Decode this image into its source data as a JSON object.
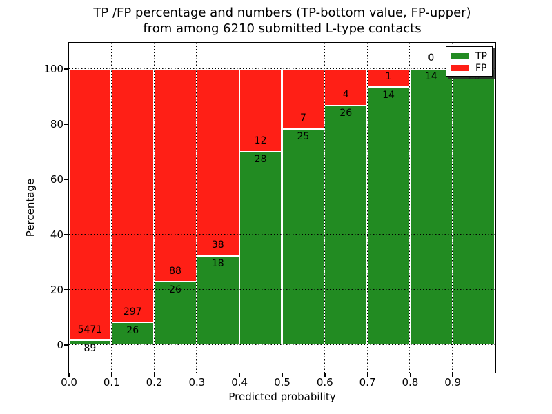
{
  "figure": {
    "title_lines": [
      "TP /FP percentage and numbers (TP-bottom value, FP-upper)",
      "from among 6210 submitted L-type contacts"
    ]
  },
  "chart_data": {
    "type": "bar",
    "stacked": true,
    "title": "TP /FP percentage and numbers (TP-bottom value, FP-upper) from among 6210 submitted L-type contacts",
    "xlabel": "Predicted probability",
    "ylabel": "Percentage",
    "total_submitted": 6210,
    "x_bin_starts": [
      0.0,
      0.1,
      0.2,
      0.3,
      0.4,
      0.5,
      0.6,
      0.7,
      0.8,
      0.9
    ],
    "bin_width": 0.1,
    "x_tick_labels": [
      "0.0",
      "0.1",
      "0.2",
      "0.3",
      "0.4",
      "0.5",
      "0.6",
      "0.7",
      "0.8",
      "0.9"
    ],
    "y_ticks": [
      0,
      20,
      40,
      60,
      80,
      100
    ],
    "y_tick_labels": [
      "0",
      "20",
      "40",
      "60",
      "80",
      "100"
    ],
    "xlim": [
      0.0,
      1.0
    ],
    "ylim": [
      -10,
      109.5
    ],
    "grid": "dotted",
    "legend": {
      "position": "upper right",
      "entries": [
        "TP",
        "FP"
      ]
    },
    "series": [
      {
        "name": "TP",
        "color": "#228b22",
        "counts": [
          89,
          26,
          26,
          18,
          28,
          25,
          26,
          14,
          14,
          26
        ],
        "percent": [
          1.6,
          8.05,
          22.81,
          32.14,
          70.0,
          78.13,
          86.67,
          93.33,
          100.0,
          100.0
        ]
      },
      {
        "name": "FP",
        "color": "#ff1f16",
        "counts": [
          5471,
          297,
          88,
          38,
          12,
          7,
          4,
          1,
          0,
          0
        ],
        "percent": [
          98.4,
          91.95,
          77.19,
          67.86,
          30.0,
          21.87,
          13.33,
          6.67,
          0.0,
          0.0
        ]
      }
    ]
  }
}
